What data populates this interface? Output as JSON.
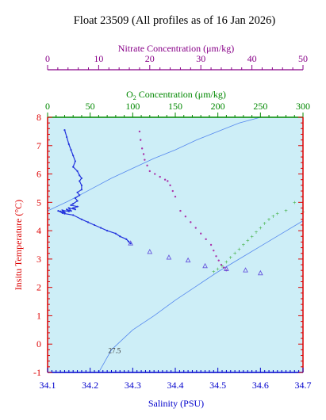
{
  "chart_data": {
    "type": "scatter",
    "title": "Float 23509  (All profiles as of 16 Jan 2026)",
    "colors": {
      "plot_bg": "#cdeef7",
      "temperature_axis": "#dd0000",
      "salinity_axis": "#0000cc",
      "oxygen_axis": "#008800",
      "nitrate_axis": "#880088",
      "isopycnal": "#5588ee",
      "profile_line": "#2233dd",
      "profile_marker": "#6655dd",
      "nitrate_points": "#aa33aa",
      "oxygen_points": "#33aa33"
    },
    "axes": {
      "salinity": {
        "label": "Salinity (PSU)",
        "range": [
          34.1,
          34.7
        ],
        "ticks": [
          "34.1",
          "34.2",
          "34.3",
          "34.4",
          "34.5",
          "34.6",
          "34.7"
        ],
        "tick_values": [
          34.1,
          34.2,
          34.3,
          34.4,
          34.5,
          34.6,
          34.7
        ]
      },
      "temperature": {
        "label": "Insitu Temperature (°C)",
        "range": [
          -1,
          8
        ],
        "ticks": [
          "-1",
          "0",
          "1",
          "2",
          "3",
          "4",
          "5",
          "6",
          "7",
          "8"
        ],
        "tick_values": [
          -1,
          0,
          1,
          2,
          3,
          4,
          5,
          6,
          7,
          8
        ]
      },
      "oxygen": {
        "label_main": "O",
        "label_sub": "2",
        "label_rest": " Concentration (μm/kg)",
        "range": [
          0,
          300
        ],
        "ticks": [
          "0",
          "50",
          "100",
          "150",
          "200",
          "250",
          "300"
        ],
        "tick_values": [
          0,
          50,
          100,
          150,
          200,
          250,
          300
        ]
      },
      "nitrate": {
        "label": "Nitrate Concentration (μm/kg)",
        "range": [
          0,
          50
        ],
        "ticks": [
          "0",
          "10",
          "20",
          "30",
          "40",
          "50"
        ],
        "tick_values": [
          0,
          10,
          20,
          30,
          40,
          50
        ]
      }
    },
    "isopycnals": [
      {
        "label": "27.5",
        "points": [
          [
            34.22,
            -1.0
          ],
          [
            34.25,
            -0.2
          ],
          [
            34.3,
            0.5
          ],
          [
            34.35,
            1.0
          ],
          [
            34.4,
            1.55
          ],
          [
            34.45,
            2.05
          ],
          [
            34.5,
            2.55
          ],
          [
            34.55,
            3.0
          ],
          [
            34.6,
            3.45
          ],
          [
            34.65,
            3.9
          ],
          [
            34.7,
            4.35
          ]
        ]
      },
      {
        "label": "",
        "points": [
          [
            34.1,
            4.7
          ],
          [
            34.15,
            5.05
          ],
          [
            34.2,
            5.45
          ],
          [
            34.25,
            5.85
          ],
          [
            34.3,
            6.2
          ],
          [
            34.35,
            6.55
          ],
          [
            34.4,
            6.85
          ],
          [
            34.45,
            7.2
          ],
          [
            34.5,
            7.5
          ],
          [
            34.55,
            7.8
          ],
          [
            34.6,
            8.0
          ]
        ]
      }
    ],
    "ts_profile": {
      "x": [
        34.14,
        34.145,
        34.15,
        34.155,
        34.16,
        34.165,
        34.16,
        34.17,
        34.175,
        34.18,
        34.175,
        34.18,
        34.18,
        34.17,
        34.175,
        34.165,
        34.17,
        34.16,
        34.155,
        34.17,
        34.16,
        34.165,
        34.15,
        34.155,
        34.145,
        34.15,
        34.135,
        34.14,
        34.13,
        34.135,
        34.125,
        34.14,
        34.16,
        34.18,
        34.195,
        34.21,
        34.225,
        34.24,
        34.26,
        34.27,
        34.285,
        34.29,
        34.295
      ],
      "y": [
        7.55,
        7.3,
        7.05,
        6.85,
        6.65,
        6.45,
        6.25,
        6.1,
        5.95,
        5.85,
        5.75,
        5.6,
        5.45,
        5.35,
        5.25,
        5.15,
        5.05,
        4.95,
        4.9,
        4.85,
        4.8,
        4.75,
        4.8,
        4.7,
        4.75,
        4.68,
        4.72,
        4.65,
        4.68,
        4.62,
        4.7,
        4.6,
        4.55,
        4.4,
        4.3,
        4.2,
        4.1,
        4.0,
        3.9,
        3.8,
        3.7,
        3.62,
        3.55
      ]
    },
    "ts_markers": {
      "x": [
        34.295,
        34.34,
        34.385,
        34.43,
        34.47,
        34.52,
        34.565,
        34.6
      ],
      "y": [
        3.55,
        3.25,
        3.05,
        2.95,
        2.75,
        2.65,
        2.6,
        2.5
      ]
    },
    "nitrate_points": {
      "x": [
        18.0,
        18.2,
        18.5,
        18.8,
        19.0,
        19.5,
        20.0,
        21.0,
        22.0,
        23.0,
        23.5,
        24.0,
        24.5,
        25.0,
        26.0,
        27.0,
        28.0,
        29.0,
        30.0,
        31.0,
        32.0,
        32.5,
        33.0,
        33.5,
        34.0,
        34.5,
        35.0
      ],
      "y": [
        7.5,
        7.2,
        6.9,
        6.7,
        6.5,
        6.3,
        6.1,
        6.0,
        5.9,
        5.8,
        5.75,
        5.6,
        5.4,
        5.2,
        4.7,
        4.5,
        4.3,
        4.1,
        3.9,
        3.7,
        3.5,
        3.3,
        3.1,
        2.95,
        2.8,
        2.7,
        2.6
      ]
    },
    "oxygen_points": {
      "x": [
        195,
        200,
        205,
        210,
        215,
        220,
        225,
        230,
        235,
        240,
        245,
        250,
        255,
        260,
        265,
        270,
        280,
        290,
        300
      ],
      "y": [
        2.55,
        2.65,
        2.75,
        2.9,
        3.05,
        3.2,
        3.35,
        3.5,
        3.65,
        3.8,
        3.95,
        4.1,
        4.25,
        4.4,
        4.5,
        4.6,
        4.7,
        5.0,
        4.65
      ]
    }
  }
}
